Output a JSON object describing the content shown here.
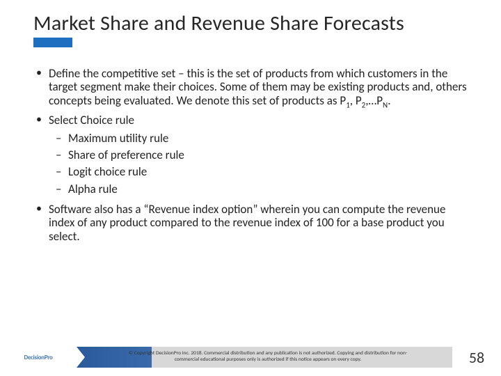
{
  "title": "Market Share and Revenue Share Forecasts",
  "accent_color": "#1f6fc0",
  "bullets": {
    "b1_pre": "Define the competitive set – this is the set of products from which customers in the target segment make their choices. Some of them may be existing products and, others concepts being evaluated.  We denote this set of products as P",
    "b1_s1": "1",
    "b1_mid1": ", P",
    "b1_s2": "2",
    "b1_mid2": ",…P",
    "b1_s3": "N",
    "b1_post": ".",
    "b2": "Select Choice rule",
    "sub1": "Maximum utility rule",
    "sub2": "Share of preference rule",
    "sub3": "Logit choice rule",
    "sub4": "Alpha rule",
    "b3": "Software also has a  “Revenue index option”  wherein you can compute the revenue index of any product compared to the revenue index of 100 for a base product you select."
  },
  "footer": {
    "logo": "DecisionPro",
    "copyright": "© Copyright DecisionPro Inc. 2018. Commercial distribution and any publication is not authorized. Copying and distribution for non-commercial educational purposes only is authorized if this notice appears on every copy.",
    "page": "58"
  }
}
